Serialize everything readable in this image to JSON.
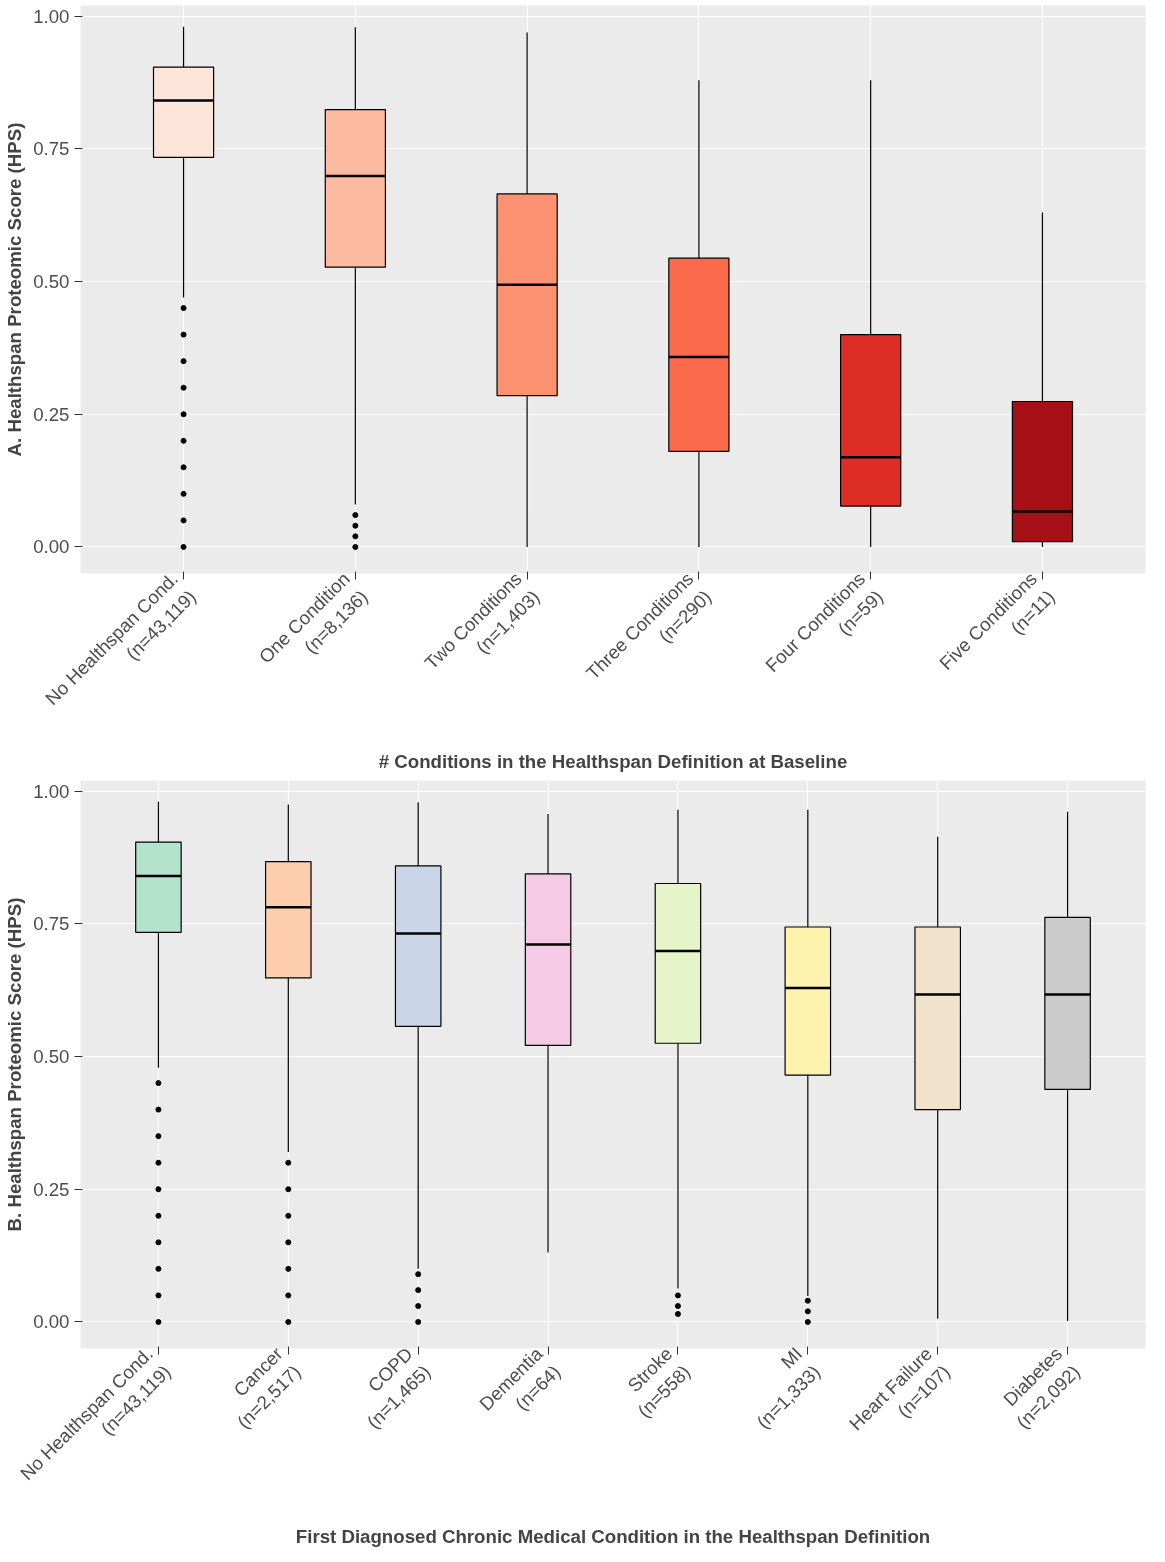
{
  "chart_data": [
    {
      "type": "box",
      "ylabel": "A. Healthspan Proteomic Score (HPS)",
      "xlabel": "# Conditions in the Healthspan Definition at Baseline",
      "categories": [
        "No Healthspan Cond.\n(n=43,119)",
        "One Condition\n(n=8,136)",
        "Two Conditions\n(n=1,403)",
        "Three Conditions\n(n=290)",
        "Four Conditions\n(n=59)",
        "Five Conditions\n(n=11)"
      ],
      "colors": [
        "#fee5d9",
        "#fcbba1",
        "#fc9272",
        "#fb6a4a",
        "#de2d26",
        "#a50f15"
      ],
      "boxes": [
        {
          "low": 0.47,
          "q1": 0.734,
          "median": 0.841,
          "q3": 0.904,
          "high": 0.98,
          "outliers": [
            0.0,
            0.05,
            0.1,
            0.15,
            0.2,
            0.25,
            0.3,
            0.35,
            0.4,
            0.45
          ]
        },
        {
          "low": 0.08,
          "q1": 0.527,
          "median": 0.699,
          "q3": 0.824,
          "high": 0.979,
          "outliers": [
            0.0,
            0.02,
            0.04,
            0.06
          ]
        },
        {
          "low": 0.0,
          "q1": 0.285,
          "median": 0.494,
          "q3": 0.665,
          "high": 0.969
        },
        {
          "low": 0.0,
          "q1": 0.18,
          "median": 0.358,
          "q3": 0.544,
          "high": 0.879
        },
        {
          "low": 0.0,
          "q1": 0.077,
          "median": 0.169,
          "q3": 0.4,
          "high": 0.879
        },
        {
          "low": 0.0,
          "q1": 0.01,
          "median": 0.067,
          "q3": 0.274,
          "high": 0.63
        }
      ],
      "ylim": [
        -0.05,
        1.02
      ],
      "yticks": [
        {
          "value": 0,
          "label": "0.00"
        },
        {
          "value": 0.25,
          "label": "0.25"
        },
        {
          "value": 0.5,
          "label": "0.50"
        },
        {
          "value": 0.75,
          "label": "0.75"
        },
        {
          "value": 1,
          "label": "1.00"
        }
      ],
      "grid": true
    },
    {
      "type": "box",
      "ylabel": "B. Healthspan Proteomic Score (HPS)",
      "xlabel": "First Diagnosed Chronic Medical Condition in the Healthspan Definition",
      "categories": [
        "No Healthspan Cond.\n(n=43,119)",
        "Cancer\n(n=2,517)",
        "COPD\n(n=1,465)",
        "Dementia\n(n=64)",
        "Stroke\n(n=558)",
        "MI\n(n=1,333)",
        "Heart Failure\n(n=107)",
        "Diabetes\n(n=2,092)"
      ],
      "colors": [
        "#b3e2cd",
        "#fdcdac",
        "#cbd5e8",
        "#f4cae4",
        "#e6f5c9",
        "#fff2ae",
        "#f1e2cc",
        "#cccccc"
      ],
      "boxes": [
        {
          "low": 0.479,
          "q1": 0.734,
          "median": 0.84,
          "q3": 0.904,
          "high": 0.98,
          "outliers": [
            0.0,
            0.05,
            0.1,
            0.15,
            0.2,
            0.25,
            0.3,
            0.35,
            0.4,
            0.45
          ]
        },
        {
          "low": 0.32,
          "q1": 0.648,
          "median": 0.781,
          "q3": 0.867,
          "high": 0.975,
          "outliers": [
            0.0,
            0.05,
            0.1,
            0.15,
            0.2,
            0.25,
            0.3
          ]
        },
        {
          "low": 0.1,
          "q1": 0.557,
          "median": 0.732,
          "q3": 0.859,
          "high": 0.979,
          "outliers": [
            0.0,
            0.03,
            0.06,
            0.09
          ]
        },
        {
          "low": 0.131,
          "q1": 0.521,
          "median": 0.711,
          "q3": 0.844,
          "high": 0.957
        },
        {
          "low": 0.063,
          "q1": 0.525,
          "median": 0.699,
          "q3": 0.826,
          "high": 0.965,
          "outliers": [
            0.015,
            0.03,
            0.05
          ]
        },
        {
          "low": 0.049,
          "q1": 0.465,
          "median": 0.629,
          "q3": 0.744,
          "high": 0.965,
          "outliers": [
            0.0,
            0.02,
            0.04
          ]
        },
        {
          "low": 0.006,
          "q1": 0.4,
          "median": 0.617,
          "q3": 0.744,
          "high": 0.914
        },
        {
          "low": 0.002,
          "q1": 0.438,
          "median": 0.617,
          "q3": 0.762,
          "high": 0.961
        }
      ],
      "ylim": [
        -0.05,
        1.02
      ],
      "yticks": [
        {
          "value": 0,
          "label": "0.00"
        },
        {
          "value": 0.25,
          "label": "0.25"
        },
        {
          "value": 0.5,
          "label": "0.50"
        },
        {
          "value": 0.75,
          "label": "0.75"
        },
        {
          "value": 1,
          "label": "1.00"
        }
      ],
      "grid": true
    }
  ]
}
